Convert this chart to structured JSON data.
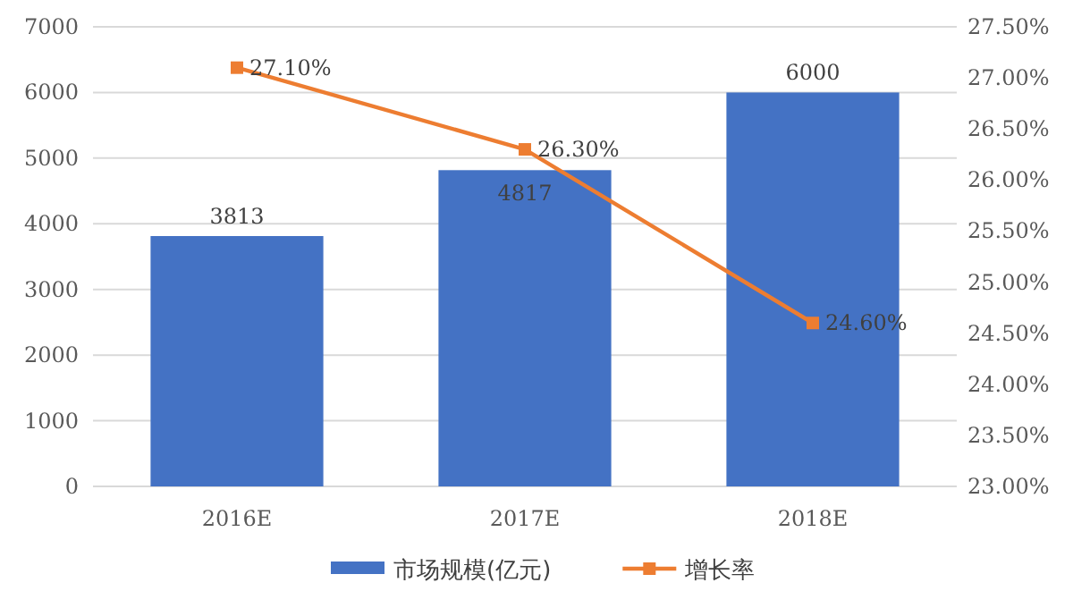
{
  "chart_data": {
    "type": "bar",
    "categories": [
      "2016E",
      "2017E",
      "2018E"
    ],
    "series": [
      {
        "name": "市场规模(亿元)",
        "color": "#4472c4",
        "values": [
          3813,
          4817,
          6000
        ],
        "value_labels": [
          "3813",
          "4817",
          "6000"
        ]
      },
      {
        "name": "增长率",
        "type": "line",
        "axis": "y2",
        "color": "#ed7d31",
        "marker": "square",
        "line_style": "solid",
        "values": [
          27.1,
          26.3,
          24.6
        ],
        "value_labels": [
          "27.10%",
          "26.30%",
          "24.60%"
        ]
      }
    ],
    "ylim": [
      0,
      7000
    ],
    "yticks": [
      0,
      1000,
      2000,
      3000,
      4000,
      5000,
      6000,
      7000
    ],
    "y2lim": [
      23,
      27.5
    ],
    "y2ticks": [
      {
        "value": 23,
        "label": "23.00%"
      },
      {
        "value": 23.5,
        "label": "23.50%"
      },
      {
        "value": 24,
        "label": "24.00%"
      },
      {
        "value": 24.5,
        "label": "24.50%"
      },
      {
        "value": 25,
        "label": "25.00%"
      },
      {
        "value": 25.5,
        "label": "25.50%"
      },
      {
        "value": 26,
        "label": "26.00%"
      },
      {
        "value": 26.5,
        "label": "26.50%"
      },
      {
        "value": 27,
        "label": "27.00%"
      },
      {
        "value": 27.5,
        "label": "27.50%"
      }
    ],
    "grid": "y",
    "legend": "bottom"
  }
}
